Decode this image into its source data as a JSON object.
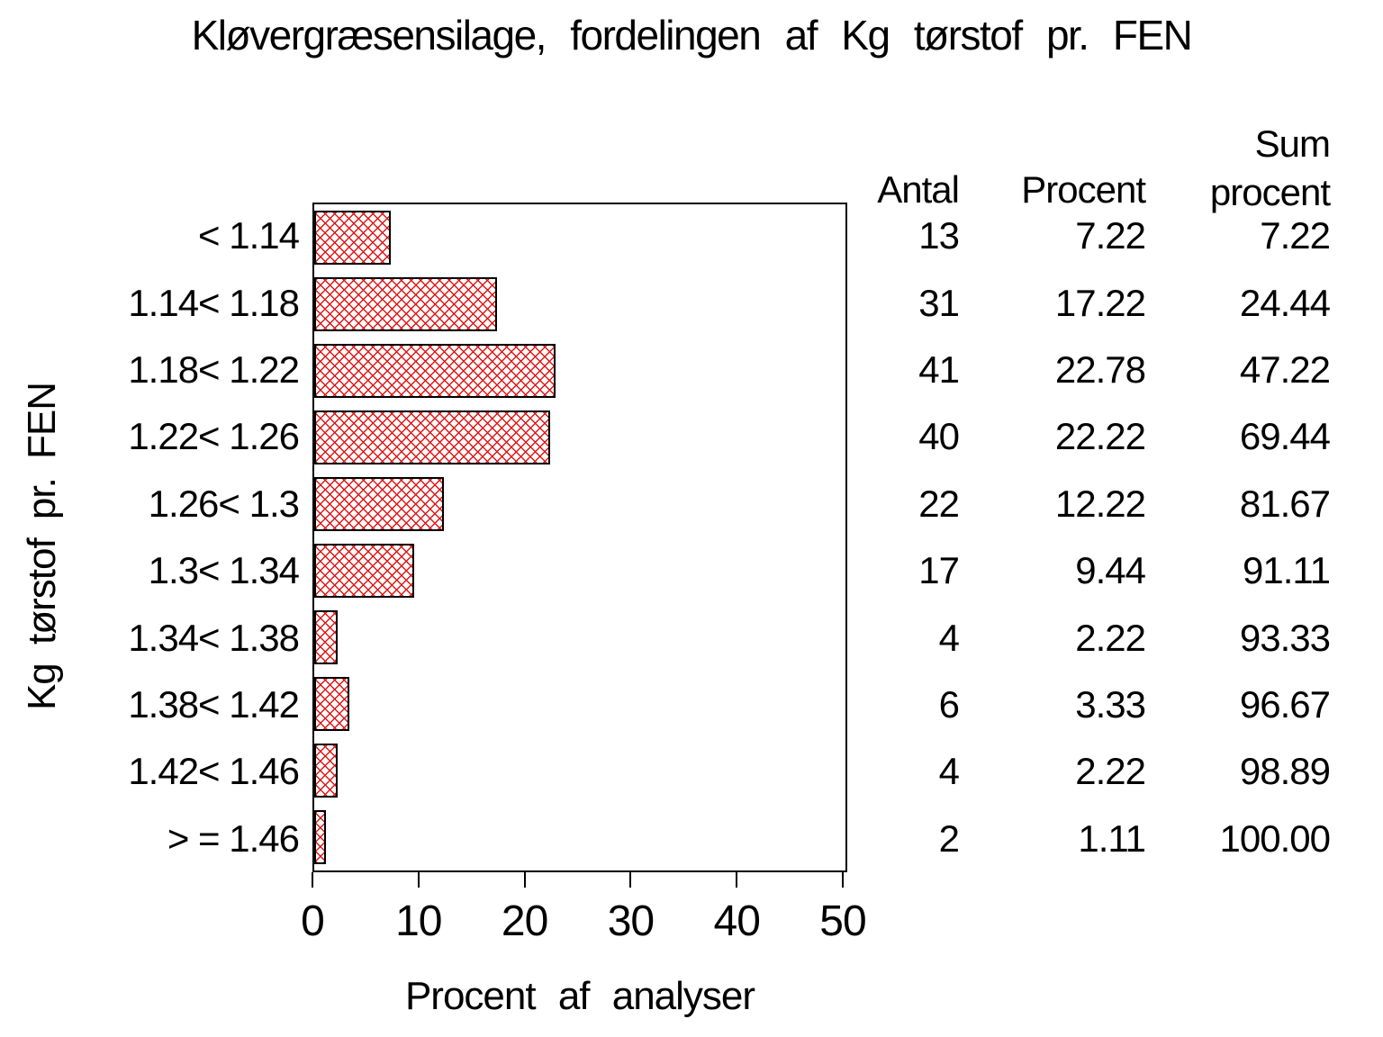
{
  "title": "Kløvergræsensilage, fordelingen af Kg tørstof pr. FEN",
  "chart_data": {
    "type": "bar",
    "orientation": "horizontal",
    "title": "Kløvergræsensilage, fordelingen af Kg tørstof pr. FEN",
    "xlabel": "Procent af analyser",
    "ylabel": "Kg tørstof pr. FEN",
    "xlim": [
      0,
      50
    ],
    "xticks": [
      "0",
      "10",
      "20",
      "30",
      "40",
      "50"
    ],
    "grid": false,
    "legend": null,
    "categories": [
      "< 1.14",
      "1.14< 1.18",
      "1.18< 1.22",
      "1.22< 1.26",
      "1.26< 1.3",
      "1.3< 1.34",
      "1.34< 1.38",
      "1.38< 1.42",
      "1.42< 1.46",
      "> = 1.46"
    ],
    "values": [
      7.22,
      17.22,
      22.78,
      22.22,
      12.22,
      9.44,
      2.22,
      3.33,
      2.22,
      1.11
    ],
    "bar_style": {
      "fill_pattern": "red-crosshatch",
      "pattern_color": "#e01616",
      "border_color": "#000000",
      "background": "#ffffff"
    }
  },
  "table": {
    "col_headers": {
      "antal": "Antal",
      "procent": "Procent",
      "sum_top": "Sum",
      "sum_bottom": "procent"
    },
    "rows": [
      {
        "antal": "13",
        "procent": "7.22",
        "sum": "7.22"
      },
      {
        "antal": "31",
        "procent": "17.22",
        "sum": "24.44"
      },
      {
        "antal": "41",
        "procent": "22.78",
        "sum": "47.22"
      },
      {
        "antal": "40",
        "procent": "22.22",
        "sum": "69.44"
      },
      {
        "antal": "22",
        "procent": "12.22",
        "sum": "81.67"
      },
      {
        "antal": "17",
        "procent": "9.44",
        "sum": "91.11"
      },
      {
        "antal": "4",
        "procent": "2.22",
        "sum": "93.33"
      },
      {
        "antal": "6",
        "procent": "3.33",
        "sum": "96.67"
      },
      {
        "antal": "4",
        "procent": "2.22",
        "sum": "98.89"
      },
      {
        "antal": "2",
        "procent": "1.11",
        "sum": "100.00"
      }
    ]
  }
}
